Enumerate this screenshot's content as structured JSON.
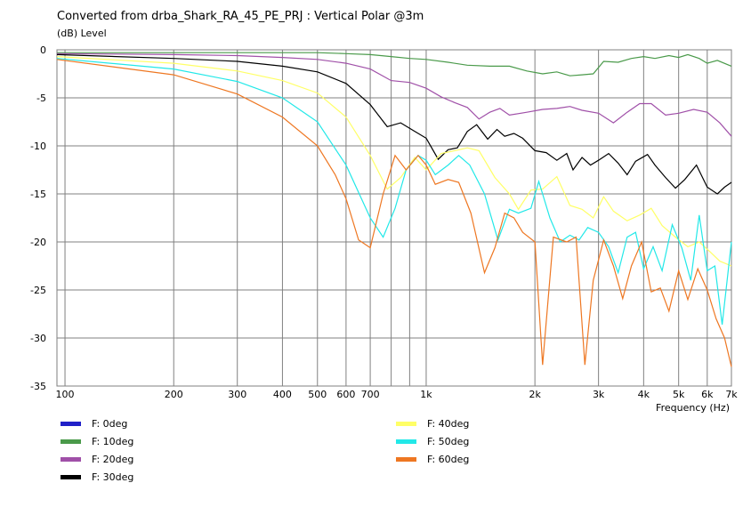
{
  "title": "Converted from drba_Shark_RA_45_PE_PRJ : Vertical Polar @3m",
  "y_unit_label": "(dB)  Level",
  "x_axis_label": "Frequency  (Hz)",
  "chart_data": {
    "type": "line",
    "xscale": "log",
    "xlim": [
      95,
      7000
    ],
    "ylim": [
      -35,
      0
    ],
    "grid": true,
    "legend_position": "bottom",
    "x_tick_labels": [
      {
        "value": 100,
        "label": "100"
      },
      {
        "value": 200,
        "label": "200"
      },
      {
        "value": 300,
        "label": "300"
      },
      {
        "value": 400,
        "label": "400"
      },
      {
        "value": 500,
        "label": "500"
      },
      {
        "value": 600,
        "label": "600"
      },
      {
        "value": 700,
        "label": "700"
      },
      {
        "value": 1000,
        "label": "1k"
      },
      {
        "value": 2000,
        "label": "2k"
      },
      {
        "value": 3000,
        "label": "3k"
      },
      {
        "value": 4000,
        "label": "4k"
      },
      {
        "value": 5000,
        "label": "5k"
      },
      {
        "value": 6000,
        "label": "6k"
      },
      {
        "value": 7000,
        "label": "7k"
      }
    ],
    "y_ticks": [
      0,
      -5,
      -10,
      -15,
      -20,
      -25,
      -30,
      -35
    ],
    "series": [
      {
        "name": "F: 0deg",
        "color": "#2020c8",
        "points": []
      },
      {
        "name": "F: 10deg",
        "color": "#4a9a4a",
        "points": [
          [
            95,
            -0.3
          ],
          [
            150,
            -0.3
          ],
          [
            300,
            -0.3
          ],
          [
            500,
            -0.3
          ],
          [
            600,
            -0.4
          ],
          [
            700,
            -0.5
          ],
          [
            800,
            -0.7
          ],
          [
            900,
            -0.9
          ],
          [
            1000,
            -1.0
          ],
          [
            1150,
            -1.3
          ],
          [
            1300,
            -1.6
          ],
          [
            1500,
            -1.7
          ],
          [
            1700,
            -1.7
          ],
          [
            1900,
            -2.2
          ],
          [
            2100,
            -2.5
          ],
          [
            2300,
            -2.3
          ],
          [
            2500,
            -2.7
          ],
          [
            2700,
            -2.6
          ],
          [
            2900,
            -2.5
          ],
          [
            3100,
            -1.2
          ],
          [
            3400,
            -1.3
          ],
          [
            3700,
            -0.9
          ],
          [
            4000,
            -0.7
          ],
          [
            4300,
            -0.9
          ],
          [
            4700,
            -0.6
          ],
          [
            5000,
            -0.8
          ],
          [
            5300,
            -0.5
          ],
          [
            5700,
            -0.9
          ],
          [
            6000,
            -1.4
          ],
          [
            6400,
            -1.1
          ],
          [
            7000,
            -1.7
          ]
        ]
      },
      {
        "name": "F: 20deg",
        "color": "#a050a8",
        "points": [
          [
            95,
            -0.4
          ],
          [
            200,
            -0.5
          ],
          [
            300,
            -0.6
          ],
          [
            400,
            -0.8
          ],
          [
            500,
            -1.0
          ],
          [
            600,
            -1.4
          ],
          [
            700,
            -2.0
          ],
          [
            800,
            -3.2
          ],
          [
            900,
            -3.4
          ],
          [
            1000,
            -4.0
          ],
          [
            1100,
            -4.9
          ],
          [
            1200,
            -5.5
          ],
          [
            1300,
            -6.0
          ],
          [
            1400,
            -7.2
          ],
          [
            1500,
            -6.5
          ],
          [
            1600,
            -6.1
          ],
          [
            1700,
            -6.8
          ],
          [
            1900,
            -6.5
          ],
          [
            2100,
            -6.2
          ],
          [
            2300,
            -6.1
          ],
          [
            2500,
            -5.9
          ],
          [
            2700,
            -6.3
          ],
          [
            3000,
            -6.6
          ],
          [
            3300,
            -7.6
          ],
          [
            3600,
            -6.5
          ],
          [
            3900,
            -5.6
          ],
          [
            4200,
            -5.6
          ],
          [
            4600,
            -6.8
          ],
          [
            5000,
            -6.6
          ],
          [
            5500,
            -6.2
          ],
          [
            6000,
            -6.5
          ],
          [
            6500,
            -7.6
          ],
          [
            7000,
            -9.0
          ]
        ]
      },
      {
        "name": "F: 30deg",
        "color": "#000000",
        "points": [
          [
            95,
            -0.5
          ],
          [
            200,
            -0.9
          ],
          [
            300,
            -1.2
          ],
          [
            400,
            -1.7
          ],
          [
            500,
            -2.3
          ],
          [
            600,
            -3.5
          ],
          [
            700,
            -5.7
          ],
          [
            780,
            -8.0
          ],
          [
            850,
            -7.6
          ],
          [
            930,
            -8.5
          ],
          [
            1000,
            -9.2
          ],
          [
            1080,
            -11.4
          ],
          [
            1150,
            -10.4
          ],
          [
            1220,
            -10.2
          ],
          [
            1300,
            -8.5
          ],
          [
            1380,
            -7.8
          ],
          [
            1480,
            -9.3
          ],
          [
            1570,
            -8.3
          ],
          [
            1650,
            -9.0
          ],
          [
            1750,
            -8.7
          ],
          [
            1850,
            -9.2
          ],
          [
            2000,
            -10.5
          ],
          [
            2150,
            -10.7
          ],
          [
            2300,
            -11.5
          ],
          [
            2450,
            -10.8
          ],
          [
            2550,
            -12.5
          ],
          [
            2700,
            -11.2
          ],
          [
            2850,
            -12.0
          ],
          [
            3000,
            -11.5
          ],
          [
            3200,
            -10.8
          ],
          [
            3400,
            -11.8
          ],
          [
            3600,
            -13.0
          ],
          [
            3800,
            -11.6
          ],
          [
            4100,
            -10.9
          ],
          [
            4300,
            -12.0
          ],
          [
            4600,
            -13.3
          ],
          [
            4900,
            -14.4
          ],
          [
            5200,
            -13.5
          ],
          [
            5600,
            -12.0
          ],
          [
            6000,
            -14.3
          ],
          [
            6400,
            -15.0
          ],
          [
            6700,
            -14.3
          ],
          [
            7000,
            -13.8
          ]
        ]
      },
      {
        "name": "F: 40deg",
        "color": "#ffff66",
        "points": [
          [
            95,
            -0.7
          ],
          [
            200,
            -1.4
          ],
          [
            300,
            -2.2
          ],
          [
            400,
            -3.2
          ],
          [
            500,
            -4.5
          ],
          [
            600,
            -7.0
          ],
          [
            700,
            -11.0
          ],
          [
            780,
            -14.5
          ],
          [
            850,
            -13.3
          ],
          [
            930,
            -11.2
          ],
          [
            1000,
            -12.5
          ],
          [
            1100,
            -10.8
          ],
          [
            1200,
            -10.5
          ],
          [
            1300,
            -10.2
          ],
          [
            1400,
            -10.5
          ],
          [
            1550,
            -13.3
          ],
          [
            1700,
            -15.0
          ],
          [
            1800,
            -16.6
          ],
          [
            1950,
            -14.6
          ],
          [
            2100,
            -14.5
          ],
          [
            2300,
            -13.2
          ],
          [
            2500,
            -16.2
          ],
          [
            2700,
            -16.6
          ],
          [
            2900,
            -17.5
          ],
          [
            3100,
            -15.3
          ],
          [
            3300,
            -16.8
          ],
          [
            3600,
            -17.8
          ],
          [
            3900,
            -17.2
          ],
          [
            4200,
            -16.5
          ],
          [
            4500,
            -18.3
          ],
          [
            4900,
            -19.5
          ],
          [
            5300,
            -20.5
          ],
          [
            5700,
            -20.0
          ],
          [
            6100,
            -21.0
          ],
          [
            6500,
            -22.0
          ],
          [
            7000,
            -22.5
          ]
        ]
      },
      {
        "name": "F: 50deg",
        "color": "#22e8e8",
        "points": [
          [
            95,
            -0.9
          ],
          [
            200,
            -2.0
          ],
          [
            300,
            -3.3
          ],
          [
            400,
            -5.0
          ],
          [
            500,
            -7.5
          ],
          [
            600,
            -12.0
          ],
          [
            700,
            -17.5
          ],
          [
            760,
            -19.5
          ],
          [
            820,
            -16.5
          ],
          [
            880,
            -12.5
          ],
          [
            950,
            -11.0
          ],
          [
            1000,
            -11.5
          ],
          [
            1060,
            -13.0
          ],
          [
            1150,
            -12.0
          ],
          [
            1230,
            -11.0
          ],
          [
            1320,
            -12.0
          ],
          [
            1450,
            -15.0
          ],
          [
            1580,
            -19.8
          ],
          [
            1700,
            -16.6
          ],
          [
            1800,
            -17.0
          ],
          [
            1950,
            -16.5
          ],
          [
            2050,
            -13.7
          ],
          [
            2200,
            -17.5
          ],
          [
            2350,
            -20.0
          ],
          [
            2500,
            -19.3
          ],
          [
            2650,
            -19.8
          ],
          [
            2800,
            -18.5
          ],
          [
            3000,
            -19.0
          ],
          [
            3200,
            -20.5
          ],
          [
            3400,
            -23.2
          ],
          [
            3600,
            -19.5
          ],
          [
            3800,
            -19.0
          ],
          [
            4000,
            -22.8
          ],
          [
            4250,
            -20.5
          ],
          [
            4500,
            -23.0
          ],
          [
            4800,
            -18.2
          ],
          [
            5100,
            -20.6
          ],
          [
            5400,
            -24.0
          ],
          [
            5700,
            -17.2
          ],
          [
            6000,
            -23.0
          ],
          [
            6300,
            -22.5
          ],
          [
            6600,
            -28.6
          ],
          [
            7000,
            -20.0
          ]
        ]
      },
      {
        "name": "F: 60deg",
        "color": "#ee7722",
        "points": [
          [
            95,
            -1.0
          ],
          [
            200,
            -2.6
          ],
          [
            300,
            -4.6
          ],
          [
            400,
            -7.0
          ],
          [
            500,
            -10.0
          ],
          [
            560,
            -13.0
          ],
          [
            600,
            -15.5
          ],
          [
            650,
            -19.8
          ],
          [
            700,
            -20.6
          ],
          [
            760,
            -15.0
          ],
          [
            820,
            -11.0
          ],
          [
            880,
            -12.5
          ],
          [
            950,
            -11.0
          ],
          [
            1000,
            -12.0
          ],
          [
            1060,
            -14.0
          ],
          [
            1150,
            -13.5
          ],
          [
            1230,
            -13.8
          ],
          [
            1330,
            -17.0
          ],
          [
            1450,
            -23.2
          ],
          [
            1550,
            -20.6
          ],
          [
            1650,
            -17.0
          ],
          [
            1750,
            -17.5
          ],
          [
            1850,
            -19.0
          ],
          [
            2000,
            -20.0
          ],
          [
            2100,
            -32.8
          ],
          [
            2250,
            -19.5
          ],
          [
            2450,
            -20.0
          ],
          [
            2600,
            -19.5
          ],
          [
            2750,
            -32.8
          ],
          [
            2900,
            -24.0
          ],
          [
            3100,
            -19.8
          ],
          [
            3300,
            -22.5
          ],
          [
            3500,
            -25.9
          ],
          [
            3700,
            -22.5
          ],
          [
            3950,
            -20.0
          ],
          [
            4200,
            -25.2
          ],
          [
            4450,
            -24.8
          ],
          [
            4700,
            -27.2
          ],
          [
            5000,
            -23.0
          ],
          [
            5300,
            -26.0
          ],
          [
            5650,
            -22.8
          ],
          [
            6000,
            -25.0
          ],
          [
            6350,
            -28.0
          ],
          [
            6700,
            -30.0
          ],
          [
            7000,
            -33.0
          ]
        ]
      }
    ]
  }
}
